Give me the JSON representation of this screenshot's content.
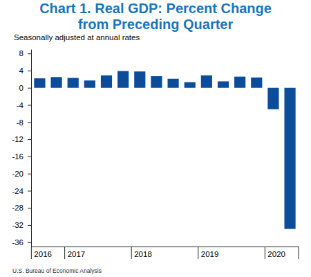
{
  "chart_data": {
    "type": "bar",
    "title": "Chart 1. Real GDP: Percent Change\nfrom Preceding Quarter",
    "subtitle": "Seasonally adjusted at annual rates",
    "source": "U.S. Bureau of Economic Analysis",
    "categories": [
      "2016",
      null,
      "2017",
      null,
      null,
      null,
      "2018",
      null,
      null,
      null,
      "2019",
      null,
      null,
      null,
      "2020",
      null
    ],
    "values": [
      2.2,
      2.5,
      2.3,
      1.7,
      2.9,
      3.9,
      3.8,
      2.7,
      2.1,
      1.3,
      2.9,
      1.5,
      2.6,
      2.4,
      -5.0,
      -32.9
    ],
    "color": "#0b4d9b",
    "ylim": [
      -37,
      9
    ],
    "yticks": [
      8,
      4,
      0,
      -4,
      -8,
      -12,
      -16,
      -20,
      -24,
      -28,
      -32,
      -36
    ],
    "grid": false
  }
}
